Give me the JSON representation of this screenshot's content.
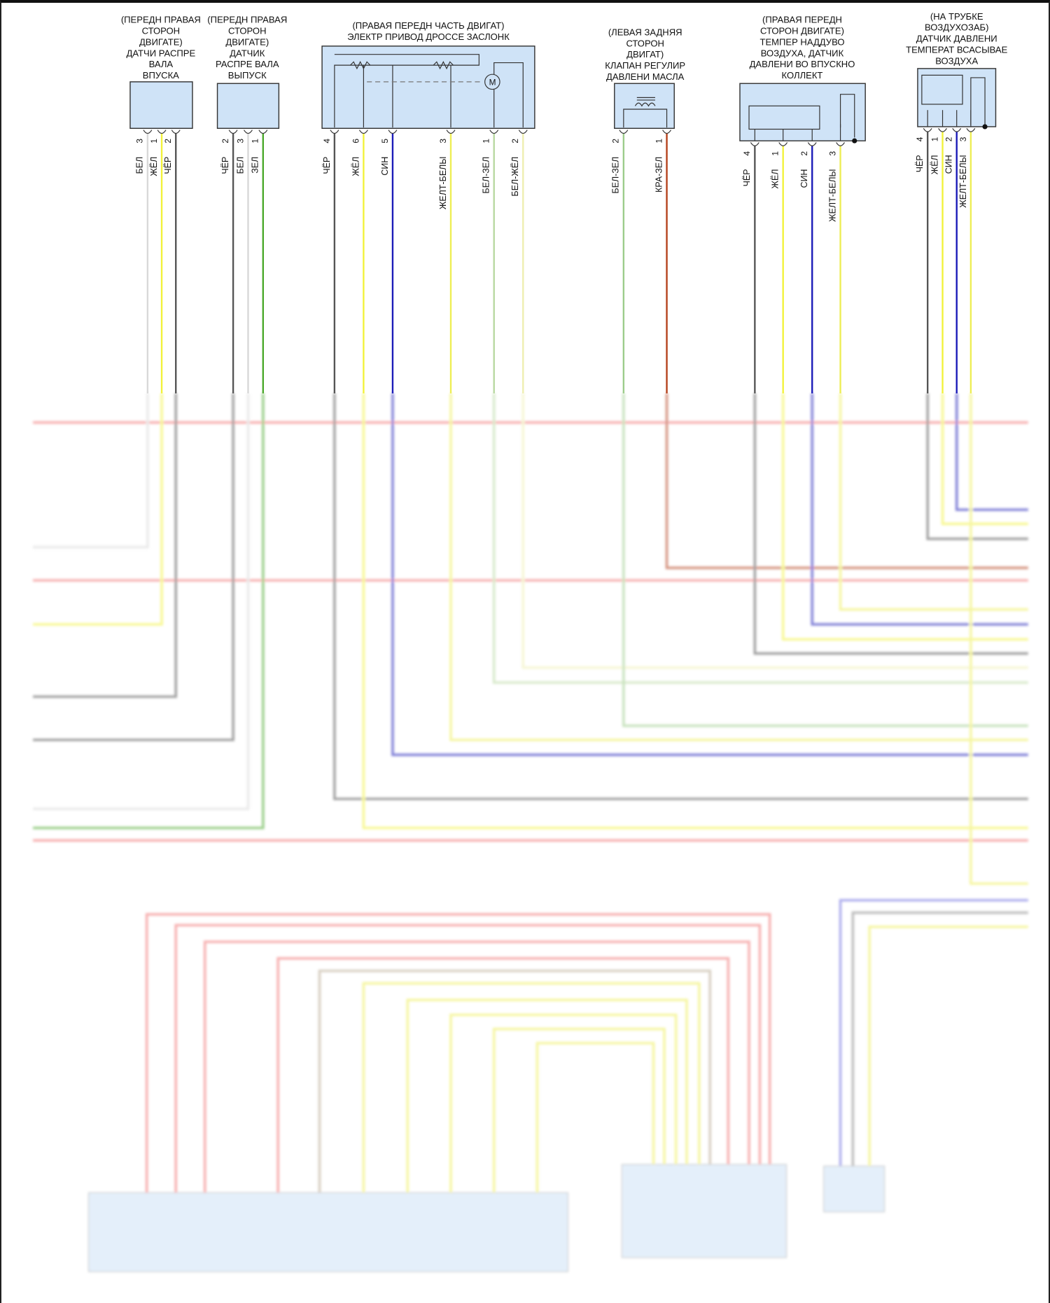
{
  "connectors": [
    {
      "title": [
        "(ПЕРЕДН ПРАВАЯ",
        "СТОРОН",
        "ДВИГАТЕ)",
        "ДАТЧИ РАСПРЕ",
        "ВАЛА",
        "ВПУСКА"
      ],
      "pins": [
        {
          "pin": "3",
          "label": "БЕЛ",
          "color": "#d8d8d8"
        },
        {
          "pin": "1",
          "label": "ЖЁЛ",
          "color": "#f2f23a"
        },
        {
          "pin": "2",
          "label": "ЧЁР",
          "color": "#555555"
        }
      ]
    },
    {
      "title": [
        "(ПЕРЕДН ПРАВАЯ",
        "СТОРОН",
        "ДВИГАТЕ)",
        "ДАТЧИК",
        "РАСПРЕ ВАЛА",
        "ВЫПУСК"
      ],
      "pins": [
        {
          "pin": "2",
          "label": "ЧЁР",
          "color": "#555555"
        },
        {
          "pin": "3",
          "label": "БЕЛ",
          "color": "#d8d8d8"
        },
        {
          "pin": "1",
          "label": "ЗЕЛ",
          "color": "#4aa82a"
        }
      ]
    },
    {
      "title": [
        "(ПРАВАЯ ПЕРЕДН ЧАСТЬ ДВИГАТ)",
        "ЭЛЕКТР ПРИВОД ДРОССЕ ЗАСЛОНК"
      ],
      "pins": [
        {
          "pin": "4",
          "label": "ЧЁР",
          "color": "#555555"
        },
        {
          "pin": "6",
          "label": "ЖЁЛ",
          "color": "#f2f23a"
        },
        {
          "pin": "5",
          "label": "СИН",
          "color": "#1a1ab8"
        },
        {
          "pin": "3",
          "label": "ЖЕЛТ-БЕЛЫ",
          "color": "#eeee55"
        },
        {
          "pin": "1",
          "label": "БЕЛ-ЗЕЛ",
          "color": "#b8d8a0"
        },
        {
          "pin": "2",
          "label": "БЕЛ-ЖЁЛ",
          "color": "#eeeeb0"
        }
      ]
    },
    {
      "title": [
        "(ЛЕВАЯ ЗАДНЯЯ",
        "СТОРОН",
        "ДВИГАТ)",
        "КЛАПАН РЕГУЛИР",
        "ДАВЛЕНИ МАСЛА"
      ],
      "pins": [
        {
          "pin": "2",
          "label": "БЕЛ-ЗЕЛ",
          "color": "#9ccc8a"
        },
        {
          "pin": "1",
          "label": "КРА-ЗЕЛ",
          "color": "#b4401a"
        }
      ]
    },
    {
      "title": [
        "(ПРАВАЯ ПЕРЕДН",
        "СТОРОН ДВИГАТЕ)",
        "ТЕМПЕР НАДДУВО",
        "ВОЗДУХА, ДАТЧИК",
        "ДАВЛЕНИ ВО ВПУСКНО",
        "КОЛЛЕКТ"
      ],
      "pins": [
        {
          "pin": "4",
          "label": "ЧЁР",
          "color": "#555555"
        },
        {
          "pin": "1",
          "label": "ЖЁЛ",
          "color": "#f2f23a"
        },
        {
          "pin": "2",
          "label": "СИН",
          "color": "#1a1ab8"
        },
        {
          "pin": "3",
          "label": "ЖЕЛТ-БЕЛЫ",
          "color": "#eeee55"
        }
      ]
    },
    {
      "title": [
        "(НА ТРУБКЕ",
        "ВОЗДУХОЗАБ)",
        "ДАТЧИК ДАВЛЕНИ",
        "ТЕМПЕРАТ ВСАСЫВАЕ",
        "ВОЗДУХА"
      ],
      "pins": [
        {
          "pin": "4",
          "label": "ЧЁР",
          "color": "#555555"
        },
        {
          "pin": "1",
          "label": "ЖЁЛ",
          "color": "#f2f23a"
        },
        {
          "pin": "2",
          "label": "СИН",
          "color": "#1a1ab8"
        },
        {
          "pin": "3",
          "label": "ЖЕЛТ-БЕЛЫ",
          "color": "#eeee55"
        }
      ]
    }
  ],
  "colors": {
    "box_fill": "#cfe3f7",
    "box_stroke": "#333333",
    "red_wire": "#f07070"
  }
}
